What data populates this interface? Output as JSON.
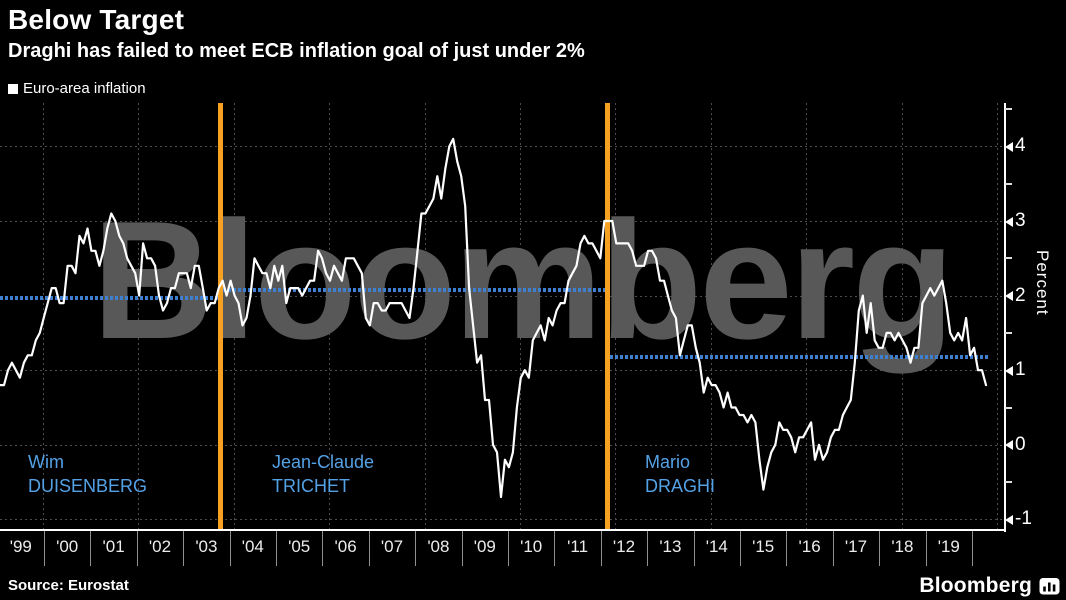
{
  "header": {
    "title": "Below Target",
    "subtitle": "Draghi has failed to meet ECB inflation goal of just under 2%"
  },
  "legend": {
    "label": "Euro-area inflation",
    "marker_color": "#ffffff"
  },
  "watermark_text": "Bloomberg",
  "footer": {
    "source": "Source: Eurostat",
    "brand": "Bloomberg",
    "brand_icon": "bar-chart-icon"
  },
  "colors": {
    "background": "#000000",
    "line": "#ffffff",
    "grid": "#4d4d4d",
    "tenure_average_line": "#3f7fd0",
    "transition_line": "#f7a123",
    "annotation_text": "#54a2e6",
    "watermark": "#585858"
  },
  "chart_data": {
    "type": "line",
    "title": "Below Target",
    "subtitle": "Draghi has failed to meet ECB inflation goal of just under 2%",
    "legend": [
      "Euro-area inflation"
    ],
    "legend_position": "top-left",
    "ylabel": "Percent",
    "ylim": [
      -1,
      4.7
    ],
    "y_ticks": [
      4,
      3,
      2,
      1,
      0,
      -1
    ],
    "y_minor_ticks": [
      4.5,
      3.5,
      2.5,
      1.5,
      0.5,
      -0.5
    ],
    "grid": "dotted",
    "x_tick_labels": [
      "'99",
      "'00",
      "'01",
      "'02",
      "'03",
      "'04",
      "'05",
      "'06",
      "'07",
      "'08",
      "'09",
      "'10",
      "'11",
      "'12",
      "'13",
      "'14",
      "'15",
      "'16",
      "'17",
      "'18",
      "'19"
    ],
    "series": [
      {
        "name": "Euro-area inflation",
        "color": "#ffffff",
        "frequency": "monthly",
        "start": "Jan 1999",
        "end": "Sep 2019",
        "values": [
          0.8,
          0.8,
          1.0,
          1.1,
          1.0,
          0.9,
          1.1,
          1.2,
          1.2,
          1.4,
          1.5,
          1.7,
          1.9,
          2.1,
          2.1,
          1.9,
          1.9,
          2.4,
          2.4,
          2.3,
          2.8,
          2.7,
          2.9,
          2.6,
          2.6,
          2.4,
          2.6,
          2.9,
          3.1,
          3.0,
          2.8,
          2.7,
          2.5,
          2.4,
          2.3,
          2.0,
          2.7,
          2.5,
          2.5,
          2.4,
          2.0,
          1.8,
          1.9,
          2.1,
          2.1,
          2.3,
          2.3,
          2.3,
          2.1,
          2.4,
          2.4,
          2.1,
          1.8,
          1.9,
          1.9,
          2.1,
          2.2,
          2.0,
          2.2,
          2.0,
          1.9,
          1.6,
          1.7,
          2.0,
          2.5,
          2.4,
          2.3,
          2.3,
          2.1,
          2.4,
          2.2,
          2.4,
          1.9,
          2.1,
          2.1,
          2.1,
          2.0,
          2.1,
          2.2,
          2.2,
          2.6,
          2.5,
          2.3,
          2.2,
          2.4,
          2.3,
          2.2,
          2.5,
          2.5,
          2.5,
          2.4,
          2.3,
          1.7,
          1.6,
          1.9,
          1.9,
          1.8,
          1.8,
          1.9,
          1.9,
          1.9,
          1.9,
          1.8,
          1.7,
          2.1,
          2.6,
          3.1,
          3.1,
          3.2,
          3.3,
          3.6,
          3.3,
          3.7,
          4.0,
          4.1,
          3.8,
          3.6,
          3.2,
          2.1,
          1.6,
          1.1,
          1.2,
          0.6,
          0.6,
          0.0,
          -0.1,
          -0.7,
          -0.2,
          -0.3,
          -0.1,
          0.5,
          0.9,
          1.0,
          0.9,
          1.4,
          1.5,
          1.6,
          1.4,
          1.7,
          1.6,
          1.8,
          1.9,
          1.9,
          2.2,
          2.3,
          2.4,
          2.7,
          2.8,
          2.7,
          2.7,
          2.6,
          2.5,
          3.0,
          3.0,
          3.0,
          2.7,
          2.7,
          2.7,
          2.7,
          2.6,
          2.4,
          2.4,
          2.4,
          2.6,
          2.6,
          2.5,
          2.2,
          2.2,
          2.0,
          1.8,
          1.7,
          1.2,
          1.4,
          1.6,
          1.6,
          1.3,
          1.1,
          0.7,
          0.9,
          0.8,
          0.8,
          0.7,
          0.5,
          0.7,
          0.5,
          0.5,
          0.4,
          0.4,
          0.3,
          0.4,
          0.3,
          -0.2,
          -0.6,
          -0.3,
          -0.1,
          0.0,
          0.3,
          0.2,
          0.2,
          0.1,
          -0.1,
          0.1,
          0.1,
          0.2,
          0.3,
          -0.2,
          0.0,
          -0.2,
          -0.1,
          0.1,
          0.2,
          0.2,
          0.4,
          0.5,
          0.6,
          1.1,
          1.8,
          2.0,
          1.5,
          1.9,
          1.4,
          1.3,
          1.3,
          1.5,
          1.5,
          1.4,
          1.5,
          1.4,
          1.3,
          1.1,
          1.3,
          1.3,
          1.9,
          2.0,
          2.1,
          2.0,
          2.1,
          2.2,
          1.9,
          1.5,
          1.4,
          1.5,
          1.4,
          1.7,
          1.2,
          1.3,
          1.0,
          1.0,
          0.8
        ]
      }
    ],
    "tenure_average_lines": [
      {
        "president": "Wim Duisenberg",
        "label": "Wim\nDUISENBERG",
        "value": 1.97,
        "color": "#3f7fd0"
      },
      {
        "president": "Jean-Claude Trichet",
        "label": "Jean-Claude\nTRICHET",
        "value": 2.08,
        "color": "#3f7fd0"
      },
      {
        "president": "Mario Draghi",
        "label": "Mario\nDRAGHI",
        "value": 1.18,
        "color": "#3f7fd0"
      }
    ],
    "transition_lines": [
      {
        "name": "Duisenberg to Trichet handover",
        "color": "#f7a123"
      },
      {
        "name": "Trichet to Draghi handover",
        "color": "#f7a123"
      }
    ]
  }
}
